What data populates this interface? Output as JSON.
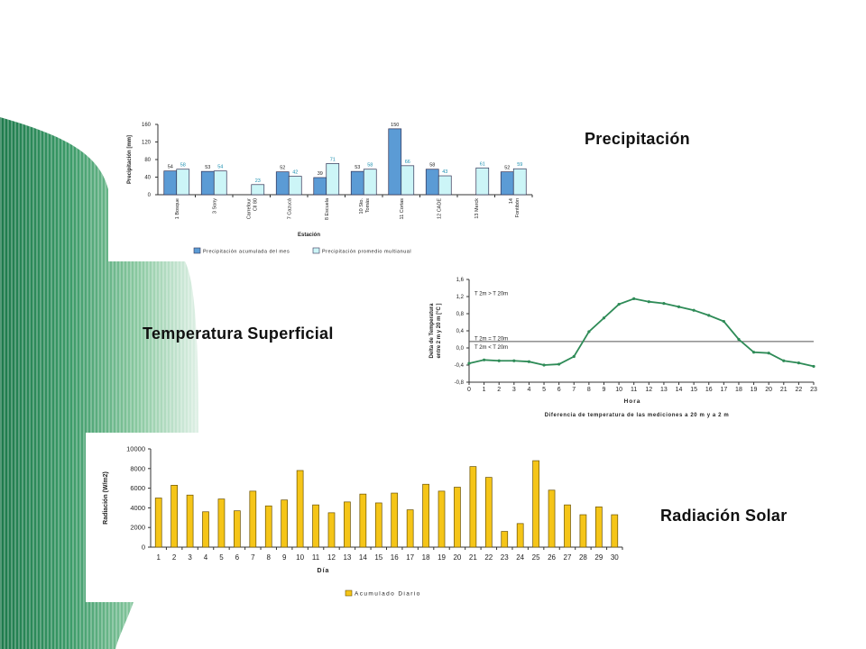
{
  "slide": {
    "titles": {
      "precip": "Precipitación",
      "temp": "Temperatura Superficial",
      "rad": "Radiación Solar"
    }
  },
  "chart_data": [
    {
      "id": "precip",
      "type": "bar",
      "ylabel": "Precipitación [mm]",
      "xlabel": "Estación",
      "ylim": [
        0,
        160
      ],
      "yticks": [
        0,
        40,
        80,
        120,
        160
      ],
      "grid": false,
      "legend_position": "bottom",
      "categories": [
        [
          "1 Bosque"
        ],
        [
          "3 Sony"
        ],
        [
          "Carrefour",
          "Cll 80"
        ],
        [
          "7 Cazucá"
        ],
        [
          "8 Escuela"
        ],
        [
          "10 Sto.",
          "Tomás"
        ],
        [
          "11 Cortas"
        ],
        [
          "12 CADE"
        ],
        [
          "13 Merck"
        ],
        [
          "14",
          "Fontibón"
        ]
      ],
      "series": [
        {
          "name": "Precipitación acumulada del mes",
          "color": "#5b9bd5",
          "values": [
            54,
            53,
            null,
            52,
            39,
            53,
            150,
            58,
            null,
            52
          ]
        },
        {
          "name": "Precipitación promedio multianual",
          "color": "#ccf5f7",
          "values": [
            58,
            54,
            23,
            42,
            71,
            58,
            66,
            43,
            61,
            59
          ]
        }
      ]
    },
    {
      "id": "temp",
      "type": "line",
      "ylabel": [
        "Delta de Temperatura",
        "entre 2 m y 20 m [°C ]"
      ],
      "xlabel": "Hora",
      "caption": "Diferencia de temperatura de las mediciones a 20 m y a 2 m",
      "ylim": [
        -0.8,
        1.6
      ],
      "yticks": [
        "1,6",
        "1,2",
        "0,8",
        "0,4",
        "0,0",
        "-0,4",
        "-0,8"
      ],
      "ytick_values": [
        1.6,
        1.2,
        0.8,
        0.4,
        0.0,
        -0.4,
        -0.8
      ],
      "xticks": [
        "0",
        "1",
        "2",
        "3",
        "4",
        "5",
        "6",
        "7",
        "8",
        "9",
        "10",
        "11",
        "12",
        "13",
        "14",
        "15",
        "16",
        "17",
        "18",
        "19",
        "20",
        "21",
        "22",
        "23"
      ],
      "x": [
        0,
        1,
        2,
        3,
        4,
        5,
        6,
        7,
        8,
        9,
        10,
        11,
        12,
        13,
        14,
        15,
        16,
        17,
        18,
        19,
        20,
        21,
        22,
        23
      ],
      "y": [
        -0.36,
        -0.28,
        -0.3,
        -0.3,
        -0.32,
        -0.4,
        -0.38,
        -0.2,
        0.38,
        0.7,
        1.02,
        1.15,
        1.08,
        1.04,
        0.96,
        0.88,
        0.76,
        0.62,
        0.2,
        -0.1,
        -0.12,
        -0.3,
        -0.35,
        -0.43
      ],
      "reference_line": 0.15,
      "annotations": [
        "T 2m > T 20m",
        "T 2m = T 20m",
        "T 2m < T 20m"
      ],
      "color": "#2e8b57",
      "grid": false
    },
    {
      "id": "rad",
      "type": "bar",
      "ylabel": "Radiación (W/m2)",
      "xlabel": "Día",
      "ylim": [
        0,
        10000
      ],
      "yticks": [
        0,
        2000,
        4000,
        6000,
        8000,
        10000
      ],
      "categories": [
        "1",
        "2",
        "3",
        "4",
        "5",
        "6",
        "7",
        "8",
        "9",
        "10",
        "11",
        "12",
        "13",
        "14",
        "15",
        "16",
        "17",
        "18",
        "19",
        "20",
        "21",
        "22",
        "23",
        "24",
        "25",
        "26",
        "27",
        "28",
        "29",
        "30"
      ],
      "series": [
        {
          "name": "Acumulado Diario",
          "color": "#f5c518",
          "values": [
            5000,
            6300,
            5300,
            3600,
            4900,
            3700,
            5700,
            4200,
            4800,
            7800,
            4300,
            3500,
            4600,
            5400,
            4500,
            5500,
            3800,
            6400,
            5700,
            6100,
            8200,
            7100,
            1600,
            2400,
            8800,
            5800,
            4300,
            3300,
            4100,
            3300
          ]
        }
      ],
      "legend_position": "bottom",
      "grid": false
    }
  ]
}
